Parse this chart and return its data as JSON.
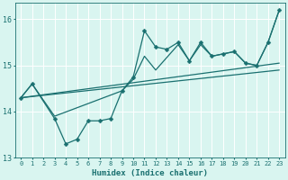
{
  "xlabel": "Humidex (Indice chaleur)",
  "bg_color": "#d9f5f0",
  "grid_color": "#ffffff",
  "line_color": "#1a7070",
  "xlim": [
    -0.5,
    23.5
  ],
  "ylim": [
    13,
    16.35
  ],
  "yticks": [
    13,
    14,
    15,
    16
  ],
  "xticks": [
    0,
    1,
    2,
    3,
    4,
    5,
    6,
    7,
    8,
    9,
    10,
    11,
    12,
    13,
    14,
    15,
    16,
    17,
    18,
    19,
    20,
    21,
    22,
    23
  ],
  "series": [
    {
      "x": [
        0,
        1,
        3,
        4,
        5,
        6,
        7,
        8,
        9,
        10,
        11,
        12,
        13,
        14,
        15,
        16,
        17,
        18,
        19,
        20,
        21,
        22,
        23
      ],
      "y": [
        14.3,
        14.6,
        13.85,
        13.3,
        13.4,
        13.8,
        13.8,
        13.85,
        14.45,
        14.75,
        15.75,
        15.4,
        15.35,
        15.5,
        15.1,
        15.5,
        15.2,
        15.25,
        15.3,
        15.05,
        15.0,
        15.5,
        16.2
      ],
      "marker": "D",
      "markersize": 2.5,
      "linewidth": 0.9
    },
    {
      "x": [
        0,
        1,
        3,
        9,
        10,
        11,
        12,
        14,
        15,
        16,
        17,
        18,
        19,
        20,
        21,
        22,
        23
      ],
      "y": [
        14.3,
        14.6,
        13.9,
        14.45,
        14.7,
        15.2,
        14.9,
        15.45,
        15.1,
        15.45,
        15.2,
        15.25,
        15.3,
        15.05,
        15.0,
        15.5,
        16.2
      ],
      "marker": null,
      "markersize": 0,
      "linewidth": 0.9
    },
    {
      "x": [
        0,
        23
      ],
      "y": [
        14.3,
        15.05
      ],
      "marker": null,
      "markersize": 0,
      "linewidth": 0.9
    },
    {
      "x": [
        0,
        23
      ],
      "y": [
        14.3,
        14.9
      ],
      "marker": null,
      "markersize": 0,
      "linewidth": 0.9
    }
  ]
}
